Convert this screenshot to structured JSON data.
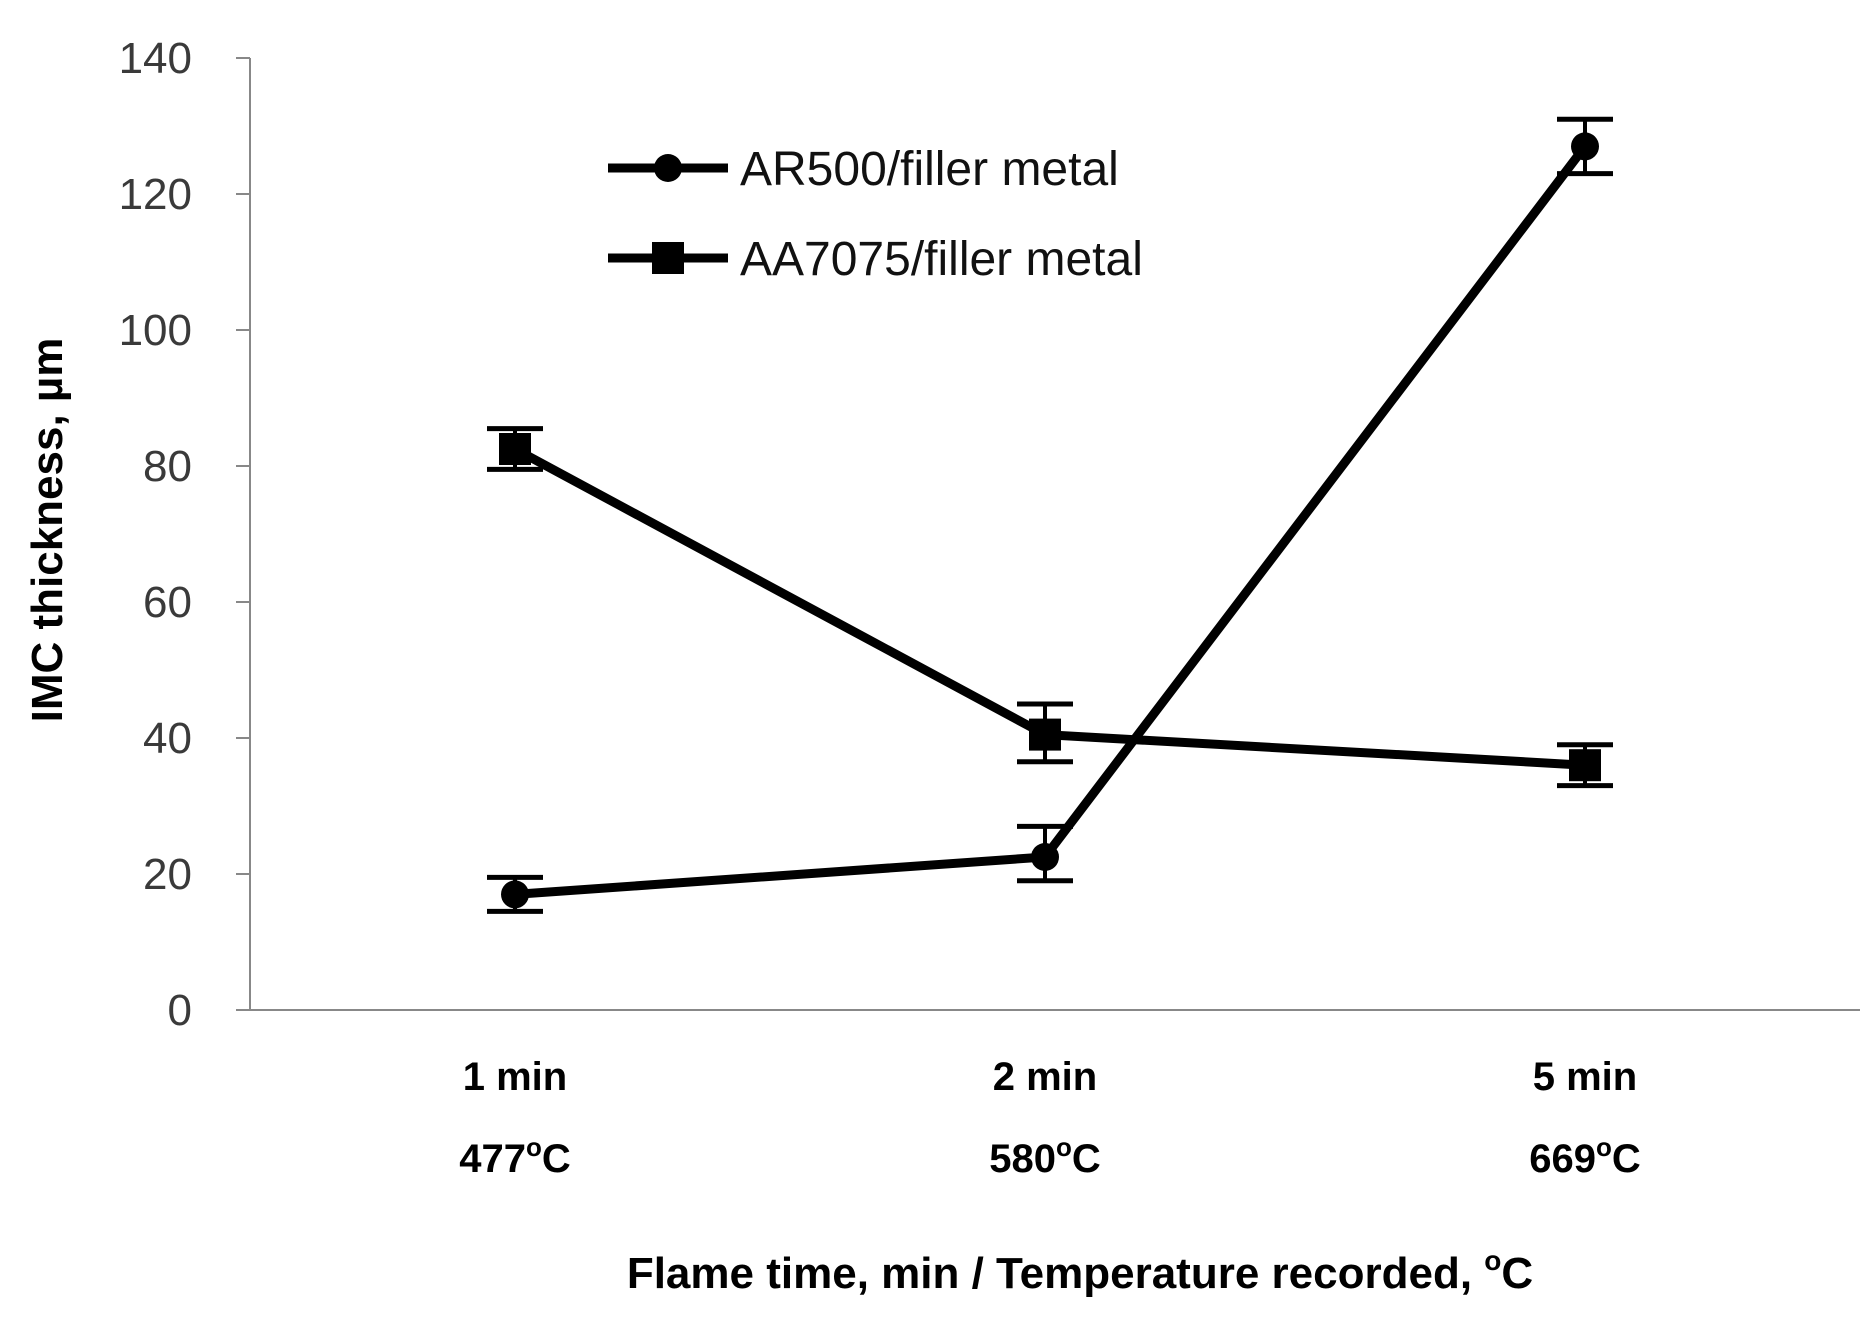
{
  "chart_data": {
    "type": "line",
    "categories": [
      "1 min",
      "2 min",
      "5 min"
    ],
    "category_sublabels": [
      "477",
      "580",
      "669"
    ],
    "degree_unit": "o",
    "temperature_unit": "C",
    "xlabel": "Flame time, min / Temperature recorded, ",
    "ylabel": "IMC thickness, µm",
    "ylim": [
      0,
      140
    ],
    "yticks": [
      0,
      20,
      40,
      60,
      80,
      100,
      120,
      140
    ],
    "grid": false,
    "legend_position": "top-center",
    "series": [
      {
        "name": "AR500/filler metal",
        "marker": "circle",
        "color": "#000000",
        "values": [
          17,
          22.5,
          127
        ],
        "error": [
          [
            14.5,
            19.5
          ],
          [
            19,
            27
          ],
          [
            123,
            131
          ]
        ]
      },
      {
        "name": "AA7075/filler metal",
        "marker": "square",
        "color": "#000000",
        "values": [
          82.5,
          40.5,
          36
        ],
        "error": [
          [
            79.5,
            85.5
          ],
          [
            36.5,
            45
          ],
          [
            33,
            39
          ]
        ]
      }
    ]
  }
}
